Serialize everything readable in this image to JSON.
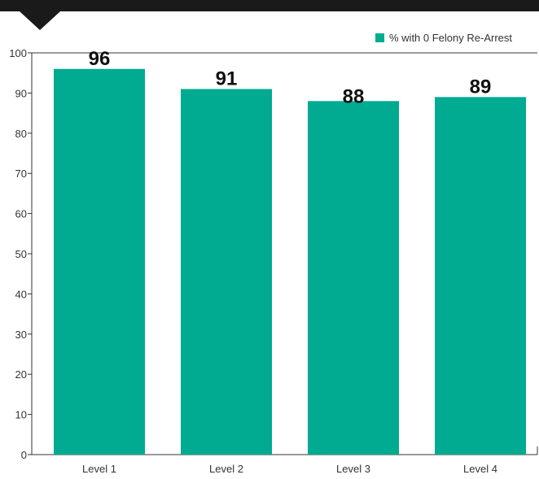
{
  "colors": {
    "bar": "#00ab91",
    "top_band": "#1a1a1a",
    "axis": "#333333",
    "text": "#333333",
    "data_label": "#111111"
  },
  "legend": {
    "label": "% with 0 Felony Re-Arrest",
    "placement": "top-right",
    "icon": "square-swatch"
  },
  "chart_data": {
    "type": "bar",
    "categories": [
      "Level 1",
      "Level 2",
      "Level 3",
      "Level 4"
    ],
    "series": [
      {
        "name": "% with 0 Felony Re-Arrest",
        "values": [
          96,
          91,
          88,
          89
        ]
      }
    ],
    "data_labels": [
      "96",
      "91",
      "88",
      "89"
    ],
    "ylim": [
      0,
      100
    ],
    "yticks": [
      0,
      10,
      20,
      30,
      40,
      50,
      60,
      70,
      80,
      90,
      100
    ],
    "grid": false,
    "legend_placement": "top-right"
  }
}
